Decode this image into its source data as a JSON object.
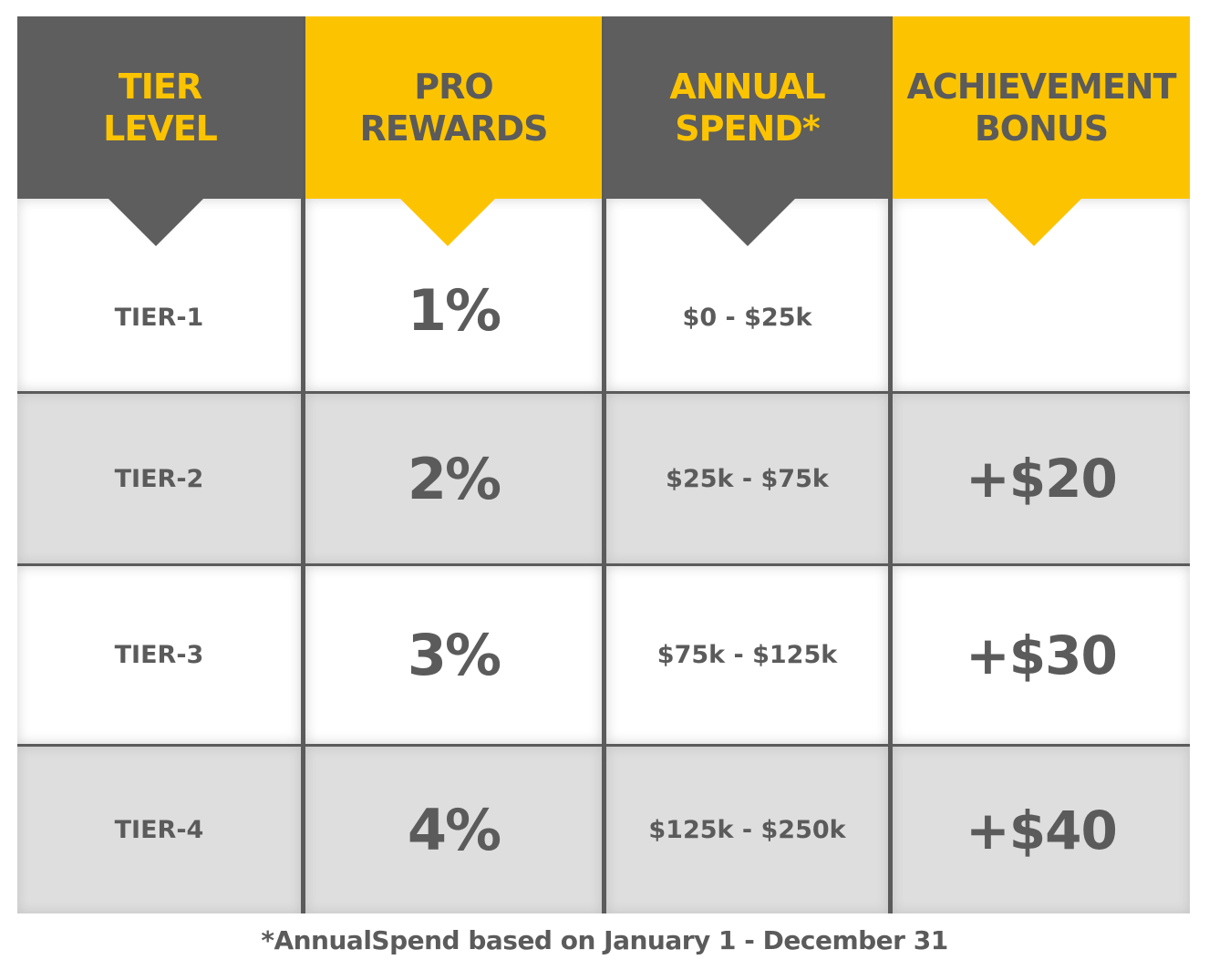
{
  "header": {
    "columns": [
      {
        "line1": "TIER",
        "line2": "LEVEL",
        "style": "gray"
      },
      {
        "line1": "PRO",
        "line2": "REWARDS",
        "style": "yellow"
      },
      {
        "line1": "ANNUAL",
        "line2": "SPEND*",
        "style": "gray"
      },
      {
        "line1": "ACHIEVEMENT",
        "line2": "BONUS",
        "style": "yellow"
      }
    ]
  },
  "rows": [
    {
      "tier": "TIER-1",
      "rewards": "1%",
      "spend": "$0 - $25k",
      "bonus": ""
    },
    {
      "tier": "TIER-2",
      "rewards": "2%",
      "spend": "$25k - $75k",
      "bonus": "+$20"
    },
    {
      "tier": "TIER-3",
      "rewards": "3%",
      "spend": "$75k - $125k",
      "bonus": "+$30"
    },
    {
      "tier": "TIER-4",
      "rewards": "4%",
      "spend": "$125k - $250k",
      "bonus": "+$40"
    }
  ],
  "footnote": "*AnnualSpend based on January 1 - December 31",
  "colors": {
    "brand_yellow": "#fcc400",
    "dark_gray": "#5e5e5e",
    "light_gray": "#dedede",
    "white": "#ffffff"
  }
}
